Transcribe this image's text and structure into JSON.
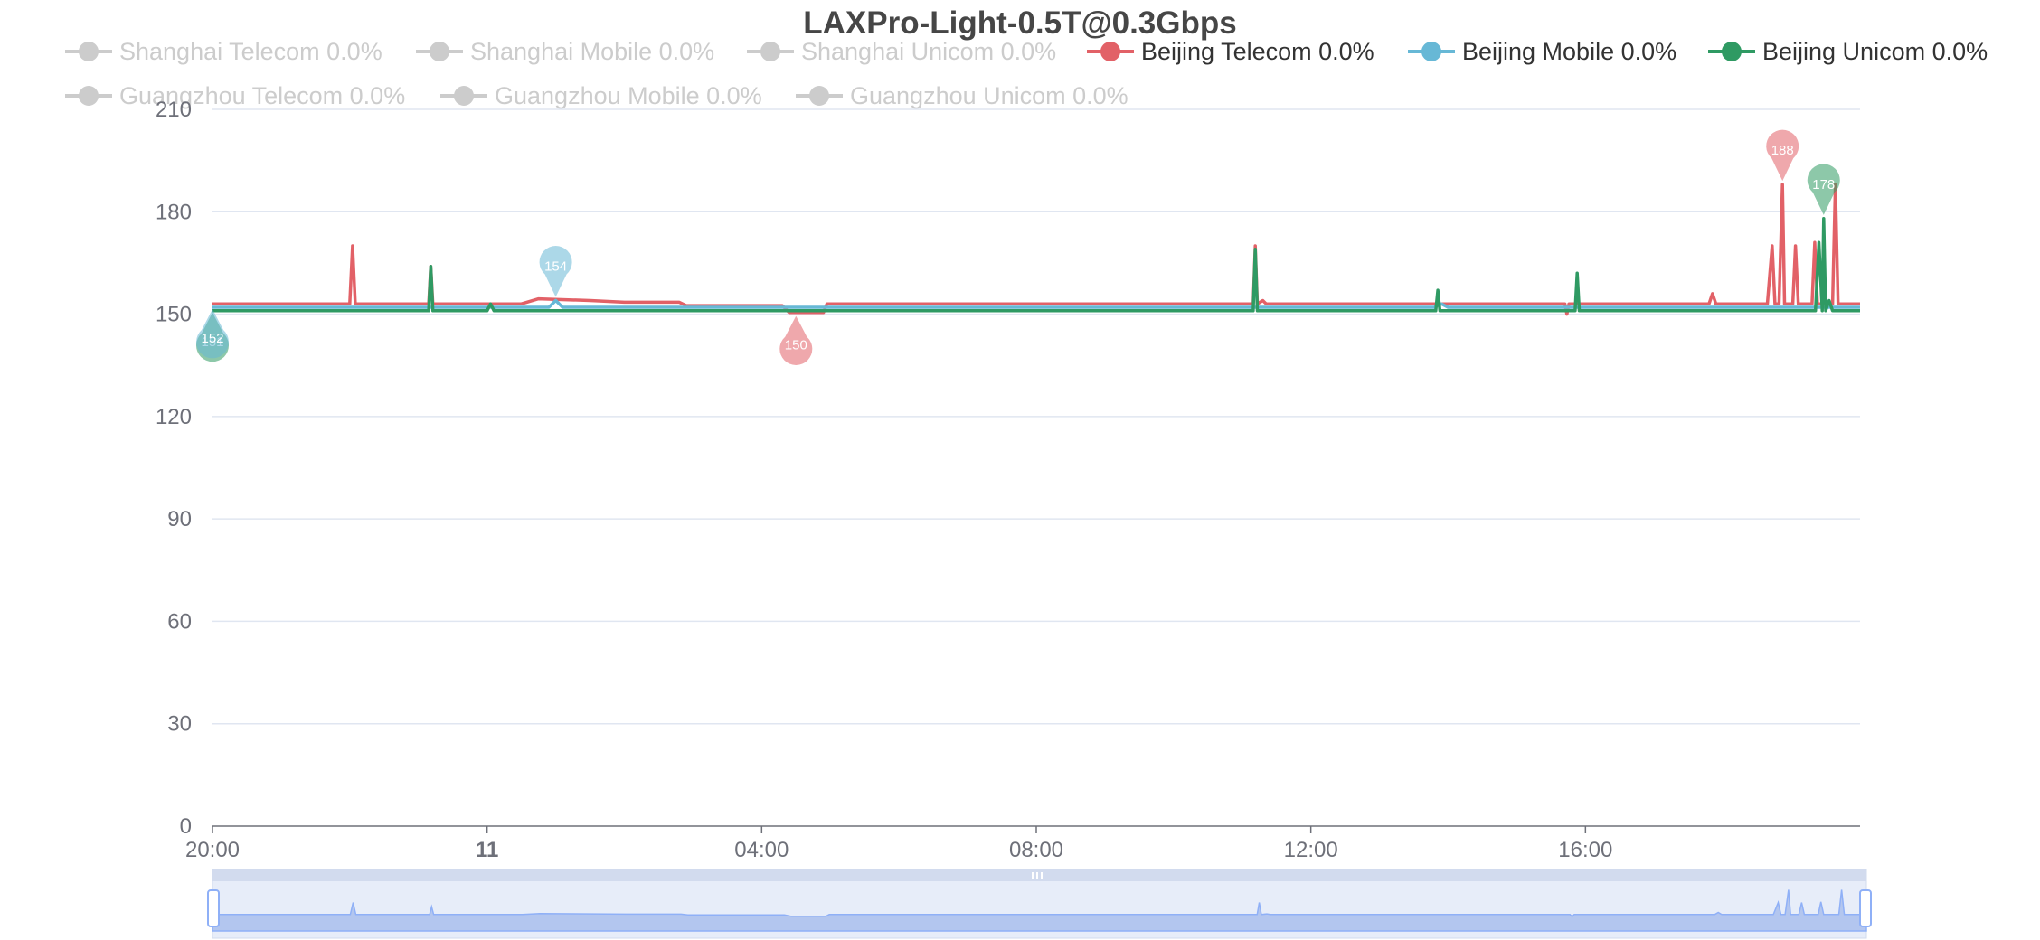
{
  "chart_data": {
    "type": "line",
    "title": "LAXPro-Light-0.5T@0.3Gbps",
    "xlabel": "",
    "ylabel": "",
    "ylim": [
      0,
      210
    ],
    "yticks": [
      0,
      30,
      60,
      90,
      120,
      150,
      180,
      210
    ],
    "xlim_hours": [
      0,
      24
    ],
    "xticks": [
      {
        "hour": 0,
        "label": "20:00",
        "bold": false
      },
      {
        "hour": 4,
        "label": "11",
        "bold": true
      },
      {
        "hour": 8,
        "label": "04:00",
        "bold": false
      },
      {
        "hour": 12,
        "label": "08:00",
        "bold": false
      },
      {
        "hour": 16,
        "label": "12:00",
        "bold": false
      },
      {
        "hour": 20,
        "label": "16:00",
        "bold": false
      }
    ],
    "grid": true,
    "legend_position": "top",
    "legend": [
      {
        "name": "Shanghai Telecom",
        "loss": "0.0%",
        "color": "#cccccc",
        "active": false
      },
      {
        "name": "Shanghai Mobile",
        "loss": "0.0%",
        "color": "#cccccc",
        "active": false
      },
      {
        "name": "Shanghai Unicom",
        "loss": "0.0%",
        "color": "#cccccc",
        "active": false
      },
      {
        "name": "Beijing Telecom",
        "loss": "0.0%",
        "color": "#e26167",
        "active": true
      },
      {
        "name": "Beijing Mobile",
        "loss": "0.0%",
        "color": "#67b8d6",
        "active": true
      },
      {
        "name": "Beijing Unicom",
        "loss": "0.0%",
        "color": "#2f9a63",
        "active": true
      },
      {
        "name": "Guangzhou Telecom",
        "loss": "0.0%",
        "color": "#cccccc",
        "active": false
      },
      {
        "name": "Guangzhou Mobile",
        "loss": "0.0%",
        "color": "#cccccc",
        "active": false
      },
      {
        "name": "Guangzhou Unicom",
        "loss": "0.0%",
        "color": "#cccccc",
        "active": false
      }
    ],
    "series": [
      {
        "name": "Beijing Telecom",
        "color": "#e26167",
        "base": 153,
        "points": [
          [
            0,
            153
          ],
          [
            2.0,
            153
          ],
          [
            2.04,
            170
          ],
          [
            2.08,
            153
          ],
          [
            3.15,
            153
          ],
          [
            3.18,
            164
          ],
          [
            3.21,
            153
          ],
          [
            4.5,
            153
          ],
          [
            4.75,
            154.5
          ],
          [
            5.5,
            154
          ],
          [
            6.0,
            153.5
          ],
          [
            6.8,
            153.5
          ],
          [
            6.9,
            152.5
          ],
          [
            8.3,
            152.5
          ],
          [
            8.4,
            150.5
          ],
          [
            8.9,
            150.5
          ],
          [
            8.95,
            153
          ],
          [
            15.16,
            153
          ],
          [
            15.19,
            170
          ],
          [
            15.22,
            153
          ],
          [
            15.3,
            154
          ],
          [
            15.35,
            153
          ],
          [
            19.7,
            153
          ],
          [
            19.73,
            150
          ],
          [
            19.76,
            153
          ],
          [
            21.8,
            153
          ],
          [
            21.85,
            156
          ],
          [
            21.9,
            153
          ],
          [
            22.65,
            153
          ],
          [
            22.72,
            170
          ],
          [
            22.76,
            153
          ],
          [
            22.82,
            153
          ],
          [
            22.87,
            188
          ],
          [
            22.9,
            153
          ],
          [
            23.02,
            153
          ],
          [
            23.06,
            170
          ],
          [
            23.1,
            153
          ],
          [
            23.3,
            153
          ],
          [
            23.34,
            171
          ],
          [
            23.38,
            153
          ],
          [
            23.6,
            153
          ],
          [
            23.64,
            188
          ],
          [
            23.68,
            153
          ],
          [
            24,
            153
          ]
        ]
      },
      {
        "name": "Beijing Mobile",
        "color": "#67b8d6",
        "base": 152,
        "points": [
          [
            0,
            152
          ],
          [
            4.9,
            152
          ],
          [
            5.0,
            154
          ],
          [
            5.1,
            152
          ],
          [
            17.8,
            152
          ],
          [
            17.9,
            153
          ],
          [
            18.0,
            152
          ],
          [
            24,
            152
          ]
        ]
      },
      {
        "name": "Beijing Unicom",
        "color": "#2f9a63",
        "base": 151,
        "points": [
          [
            0,
            151
          ],
          [
            3.15,
            151
          ],
          [
            3.18,
            164
          ],
          [
            3.21,
            151
          ],
          [
            4.0,
            151
          ],
          [
            4.05,
            153
          ],
          [
            4.1,
            151
          ],
          [
            15.16,
            151
          ],
          [
            15.19,
            169
          ],
          [
            15.22,
            151
          ],
          [
            17.82,
            151
          ],
          [
            17.85,
            157
          ],
          [
            17.88,
            151
          ],
          [
            19.85,
            151
          ],
          [
            19.88,
            162
          ],
          [
            19.91,
            151
          ],
          [
            23.35,
            151
          ],
          [
            23.4,
            171
          ],
          [
            23.45,
            151
          ],
          [
            23.47,
            178
          ],
          [
            23.5,
            151
          ],
          [
            23.55,
            154
          ],
          [
            23.6,
            151
          ],
          [
            24,
            151
          ]
        ]
      }
    ],
    "markers": [
      {
        "series": "Beijing Unicom",
        "label": "151",
        "hour": 0,
        "value": 151,
        "kind": "min",
        "color": "#2f9a63"
      },
      {
        "series": "Beijing Mobile",
        "label": "152",
        "hour": 0,
        "value": 152,
        "kind": "min",
        "color": "#67b8d6"
      },
      {
        "series": "Beijing Mobile",
        "label": "154",
        "hour": 5.0,
        "value": 154,
        "kind": "max",
        "color": "#67b8d6"
      },
      {
        "series": "Beijing Telecom",
        "label": "150",
        "hour": 8.5,
        "value": 150,
        "kind": "min",
        "color": "#e26167"
      },
      {
        "series": "Beijing Telecom",
        "label": "188",
        "hour": 22.87,
        "value": 188,
        "kind": "max",
        "color": "#e26167"
      },
      {
        "series": "Beijing Unicom",
        "label": "178",
        "hour": 23.47,
        "value": 178,
        "kind": "max",
        "color": "#2f9a63"
      }
    ],
    "datazoom": {
      "start_percent": 0,
      "end_percent": 100
    }
  }
}
